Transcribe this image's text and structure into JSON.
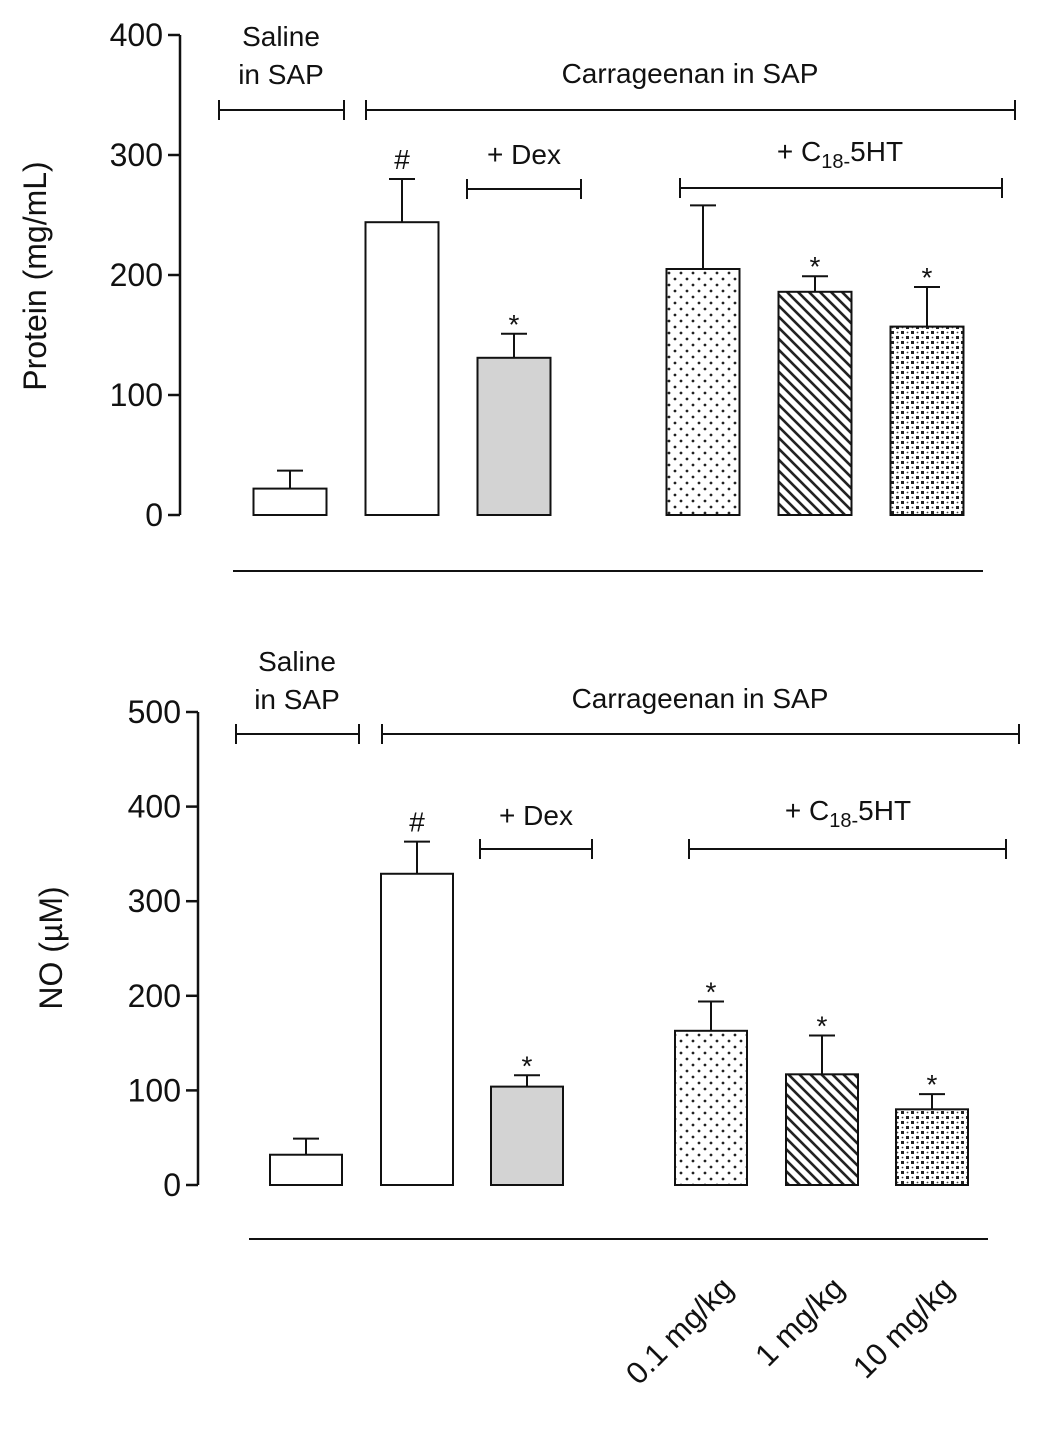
{
  "chart_data": [
    {
      "type": "bar",
      "ylabel": "Protein (mg/mL)",
      "ylim": [
        0,
        400
      ],
      "yticks": [
        "0",
        "100",
        "200",
        "300",
        "400"
      ],
      "values": [
        22,
        244,
        131,
        205,
        186,
        157
      ],
      "errors": [
        15,
        36,
        20,
        53,
        13,
        33
      ],
      "markers": [
        "",
        "#",
        "*",
        "",
        "*",
        "*"
      ],
      "bar_styles": [
        "open",
        "open",
        "gray",
        "dots",
        "hatch",
        "checker"
      ],
      "annotations": {
        "saline": [
          "Saline",
          "in SAP"
        ],
        "carrageenan": "Carrageenan in  SAP",
        "dex": "+ Dex",
        "c18_prefix": "+ C",
        "c18_sub": "18-",
        "c18_suffix": "5HT"
      }
    },
    {
      "type": "bar",
      "ylabel": "NO (µM)",
      "ylim": [
        0,
        500
      ],
      "yticks": [
        "0",
        "100",
        "200",
        "300",
        "400",
        "500"
      ],
      "values": [
        32,
        329,
        104,
        163,
        117,
        80
      ],
      "errors": [
        17,
        34,
        12,
        31,
        41,
        16
      ],
      "markers": [
        "",
        "#",
        "*",
        "*",
        "*",
        "*"
      ],
      "bar_styles": [
        "open",
        "open",
        "gray",
        "dots",
        "hatch",
        "checker"
      ],
      "annotations": {
        "saline": [
          "Saline",
          "in SAP"
        ],
        "carrageenan": "Carrageenan in  SAP",
        "dex": "+ Dex",
        "c18_prefix": "+ C",
        "c18_sub": "18-",
        "c18_suffix": "5HT"
      },
      "x_labels": [
        "",
        "",
        "",
        "0.1 mg/kg",
        "1 mg/kg",
        "10 mg/kg"
      ]
    }
  ]
}
